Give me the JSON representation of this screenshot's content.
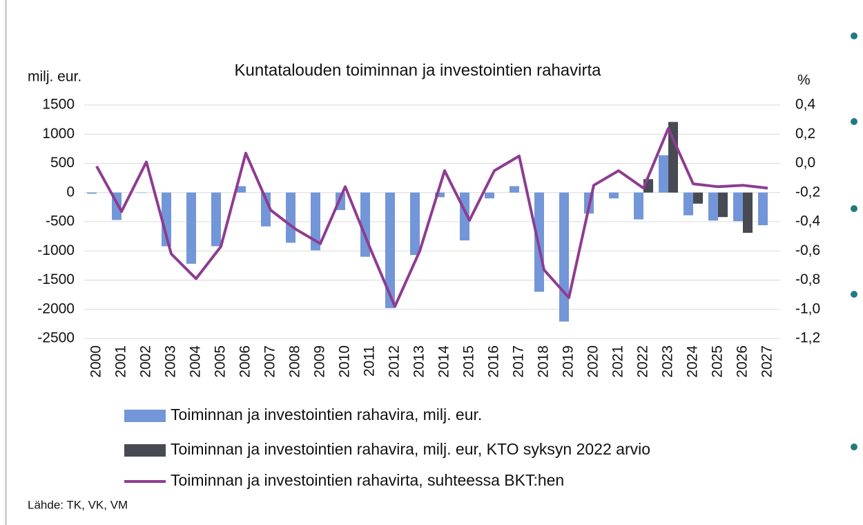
{
  "chart_data": {
    "type": "bar-line",
    "title": "Kuntatalouden toiminnan ja investointien rahavirta",
    "y_label": "milj. eur.",
    "y2_label": "%",
    "source": "Lähde: TK, VK, VM",
    "categories": [
      "2000",
      "2001",
      "2002",
      "2003",
      "2004",
      "2005",
      "2006",
      "2007",
      "2008",
      "2009",
      "2010",
      "2011",
      "2012",
      "2013",
      "2014",
      "2015",
      "2016",
      "2017",
      "2018",
      "2019",
      "2020",
      "2021",
      "2022",
      "2023",
      "2024",
      "2025",
      "2026",
      "2027"
    ],
    "series": [
      {
        "name": "Toiminnan ja investointien rahavira, milj. eur.",
        "type": "bar",
        "color": "#7396d8",
        "values": [
          -20,
          -470,
          0,
          -920,
          -1220,
          -920,
          110,
          -580,
          -860,
          -990,
          -300,
          -1100,
          -1980,
          -1070,
          -80,
          -820,
          -100,
          110,
          -1700,
          -2210,
          -360,
          -100,
          -460,
          640,
          -390,
          -480,
          -490,
          -560
        ]
      },
      {
        "name": "Toiminnan ja investointien rahavira, milj. eur, KTO syksyn 2022 arvio",
        "type": "bar",
        "color": "#474a52",
        "values": [
          null,
          null,
          null,
          null,
          null,
          null,
          null,
          null,
          null,
          null,
          null,
          null,
          null,
          null,
          null,
          null,
          null,
          null,
          null,
          null,
          null,
          null,
          230,
          1210,
          -190,
          -420,
          -690,
          null
        ]
      },
      {
        "name": "Toiminnan ja investointien rahavirta, suhteessa BKT:hen",
        "type": "line",
        "axis": "y2",
        "color": "#8e3c91",
        "values": [
          -0.02,
          -0.33,
          0.01,
          -0.62,
          -0.79,
          -0.57,
          0.07,
          -0.32,
          -0.45,
          -0.55,
          -0.16,
          -0.58,
          -0.98,
          -0.6,
          -0.05,
          -0.39,
          -0.05,
          0.05,
          -0.73,
          -0.92,
          -0.15,
          -0.05,
          -0.17,
          0.24,
          -0.14,
          -0.16,
          -0.15,
          -0.17
        ]
      }
    ],
    "ylim": [
      -2500,
      1500
    ],
    "yticks": [
      -2500,
      -2000,
      -1500,
      -1000,
      -500,
      0,
      500,
      1000,
      1500
    ],
    "y2lim": [
      -1.2,
      0.4
    ],
    "y2ticks": [
      {
        "value": -1.2,
        "label": "-1,2"
      },
      {
        "value": -1.0,
        "label": "-1,0"
      },
      {
        "value": -0.8,
        "label": "-0,8"
      },
      {
        "value": -0.6,
        "label": "-0,6"
      },
      {
        "value": -0.4,
        "label": "-0,4"
      },
      {
        "value": -0.2,
        "label": "-0,2"
      },
      {
        "value": 0,
        "label": "0,0"
      },
      {
        "value": 0.2,
        "label": "0,2"
      },
      {
        "value": 0.4,
        "label": "0,4"
      }
    ],
    "grid": true
  }
}
